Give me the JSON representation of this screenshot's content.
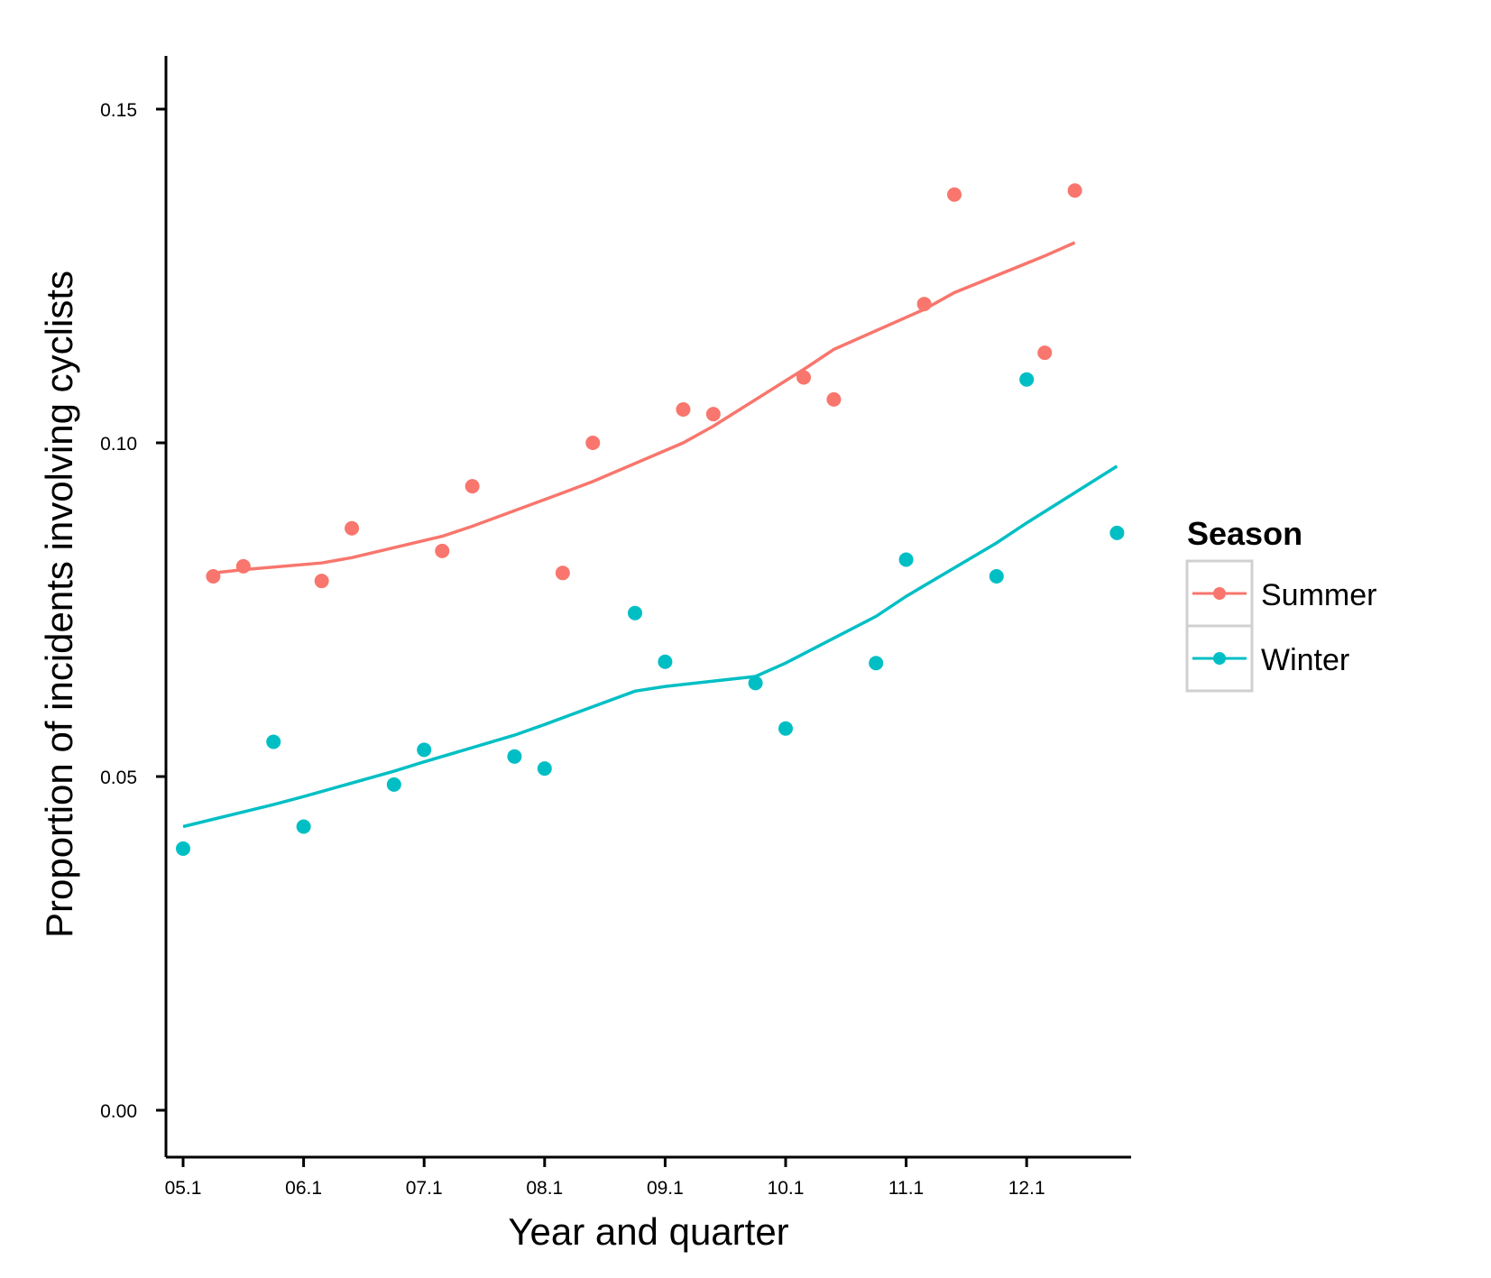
{
  "chart_data": {
    "type": "scatter",
    "title": "",
    "xlabel": "Year and quarter",
    "ylabel": "Proportion of incidents involving cyclists",
    "x_ticks": [
      "05.1",
      "06.1",
      "07.1",
      "08.1",
      "09.1",
      "10.1",
      "11.1",
      "12.1"
    ],
    "y_ticks": [
      "0.00",
      "0.05",
      "0.10",
      "0.15"
    ],
    "xlim": [
      2005.1,
      2012.85
    ],
    "ylim": [
      -0.0075,
      0.157
    ],
    "grid": false,
    "legend": {
      "title": "Season",
      "placement": "right",
      "entries": [
        "Summer",
        "Winter"
      ]
    },
    "series": [
      {
        "name": "Summer",
        "color": "#F8766D",
        "x": [
          2005.35,
          2005.6,
          2006.25,
          2006.5,
          2007.25,
          2007.5,
          2008.25,
          2008.5,
          2009.25,
          2009.5,
          2010.25,
          2010.5,
          2011.25,
          2011.5,
          2012.25,
          2012.5
        ],
        "y": [
          0.08,
          0.0815,
          0.0793,
          0.0872,
          0.0838,
          0.0935,
          0.0805,
          0.1,
          0.105,
          0.1043,
          0.1098,
          0.1065,
          0.1208,
          0.1372,
          0.1135,
          0.1378
        ],
        "trend_x": [
          2005.35,
          2005.6,
          2006.25,
          2006.5,
          2007.25,
          2007.5,
          2008.25,
          2008.5,
          2009.25,
          2009.5,
          2010.25,
          2010.5,
          2011.25,
          2011.5,
          2012.25,
          2012.5
        ],
        "trend_y": [
          0.0805,
          0.081,
          0.082,
          0.0828,
          0.086,
          0.0875,
          0.0925,
          0.0942,
          0.1,
          0.1025,
          0.111,
          0.114,
          0.12,
          0.1225,
          0.128,
          0.13
        ]
      },
      {
        "name": "Winter",
        "color": "#00BFC4",
        "x": [
          2005.1,
          2005.85,
          2006.1,
          2006.85,
          2007.1,
          2007.85,
          2008.1,
          2008.85,
          2009.1,
          2009.85,
          2010.1,
          2010.85,
          2011.1,
          2011.85,
          2012.1,
          2012.85
        ],
        "y": [
          0.0392,
          0.0552,
          0.0425,
          0.0488,
          0.054,
          0.053,
          0.0512,
          0.0745,
          0.0672,
          0.064,
          0.0572,
          0.067,
          0.0825,
          0.08,
          0.1095,
          0.0865
        ],
        "trend_x": [
          2005.1,
          2005.85,
          2006.1,
          2006.85,
          2007.1,
          2007.85,
          2008.1,
          2008.85,
          2009.1,
          2009.85,
          2010.1,
          2010.85,
          2011.1,
          2011.85,
          2012.1,
          2012.85
        ],
        "trend_y": [
          0.0425,
          0.0458,
          0.047,
          0.0508,
          0.0522,
          0.0562,
          0.0578,
          0.0628,
          0.0635,
          0.065,
          0.067,
          0.074,
          0.077,
          0.085,
          0.088,
          0.0965
        ]
      }
    ]
  }
}
